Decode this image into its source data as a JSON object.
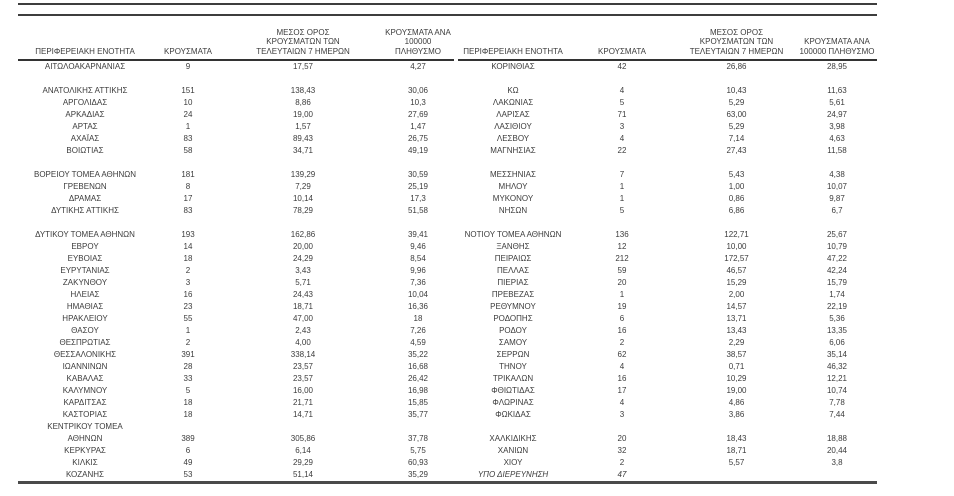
{
  "document": {
    "type": "regional-cases-report-table",
    "colors": {
      "text": "#3c3c3c",
      "rules": "#3d3d3d",
      "bottom_rule": "#4a4a4a"
    }
  },
  "table": {
    "headers": {
      "region": "ΠΕΡΙΦΕΡΕΙΑΚΗ ΕΝΟΤΗΤΑ",
      "cases": "ΚΡΟΥΣΜΑΤΑ",
      "avg7day": "ΜΕΣΟΣ ΟΡΟΣ\nΚΡΟΥΣΜΑΤΩΝ ΤΩΝ\nΤΕΛΕΥΤΑΙΩΝ 7 ΗΜΕΡΩΝ",
      "per100k": "ΚΡΟΥΣΜΑΤΑ ΑΝΑ\n100000 ΠΛΗΘΥΣΜΟ"
    },
    "left_rows": [
      {
        "cells": [
          "ΑΙΤΩΛΟΑΚΑΡΝΑΝΙΑΣ",
          "9",
          "17,57",
          "4,27"
        ]
      },
      {
        "cells": [
          "",
          "",
          "",
          ""
        ]
      },
      {
        "cells": [
          "ΑΝΑΤΟΛΙΚΗΣ ΑΤΤΙΚΗΣ",
          "151",
          "138,43",
          "30,06"
        ]
      },
      {
        "cells": [
          "ΑΡΓΟΛΙΔΑΣ",
          "10",
          "8,86",
          "10,3"
        ]
      },
      {
        "cells": [
          "ΑΡΚΑΔΙΑΣ",
          "24",
          "19,00",
          "27,69"
        ]
      },
      {
        "cells": [
          "ΑΡΤΑΣ",
          "1",
          "1,57",
          "1,47"
        ]
      },
      {
        "cells": [
          "ΑΧΑΪΑΣ",
          "83",
          "89,43",
          "26,75"
        ]
      },
      {
        "cells": [
          "ΒΟΙΩΤΙΑΣ",
          "58",
          "34,71",
          "49,19"
        ]
      },
      {
        "cells": [
          "",
          "",
          "",
          ""
        ]
      },
      {
        "cells": [
          "ΒΟΡΕΙΟΥ ΤΟΜΕΑ ΑΘΗΝΩΝ",
          "181",
          "139,29",
          "30,59"
        ]
      },
      {
        "cells": [
          "ΓΡΕΒΕΝΩΝ",
          "8",
          "7,29",
          "25,19"
        ]
      },
      {
        "cells": [
          "ΔΡΑΜΑΣ",
          "17",
          "10,14",
          "17,3"
        ]
      },
      {
        "cells": [
          "ΔΥΤΙΚΗΣ ΑΤΤΙΚΗΣ",
          "83",
          "78,29",
          "51,58"
        ]
      },
      {
        "cells": [
          "",
          "",
          "",
          ""
        ]
      },
      {
        "cells": [
          "ΔΥΤΙΚΟΥ ΤΟΜΕΑ ΑΘΗΝΩΝ",
          "193",
          "162,86",
          "39,41"
        ]
      },
      {
        "cells": [
          "ΕΒΡΟΥ",
          "14",
          "20,00",
          "9,46"
        ]
      },
      {
        "cells": [
          "ΕΥΒΟΙΑΣ",
          "18",
          "24,29",
          "8,54"
        ]
      },
      {
        "cells": [
          "ΕΥΡΥΤΑΝΙΑΣ",
          "2",
          "3,43",
          "9,96"
        ]
      },
      {
        "cells": [
          "ΖΑΚΥΝΘΟΥ",
          "3",
          "5,71",
          "7,36"
        ]
      },
      {
        "cells": [
          "ΗΛΕΙΑΣ",
          "16",
          "24,43",
          "10,04"
        ]
      },
      {
        "cells": [
          "ΗΜΑΘΙΑΣ",
          "23",
          "18,71",
          "16,36"
        ]
      },
      {
        "cells": [
          "ΗΡΑΚΛΕΙΟΥ",
          "55",
          "47,00",
          "18"
        ]
      },
      {
        "cells": [
          "ΘΑΣΟΥ",
          "1",
          "2,43",
          "7,26"
        ]
      },
      {
        "cells": [
          "ΘΕΣΠΡΩΤΙΑΣ",
          "2",
          "4,00",
          "4,59"
        ]
      },
      {
        "cells": [
          "ΘΕΣΣΑΛΟΝΙΚΗΣ",
          "391",
          "338,14",
          "35,22"
        ]
      },
      {
        "cells": [
          "ΙΩΑΝΝΙΝΩΝ",
          "28",
          "23,57",
          "16,68"
        ]
      },
      {
        "cells": [
          "ΚΑΒΑΛΑΣ",
          "33",
          "23,57",
          "26,42"
        ]
      },
      {
        "cells": [
          "ΚΑΛΥΜΝΟΥ",
          "5",
          "16,00",
          "16,98"
        ]
      },
      {
        "cells": [
          "ΚΑΡΔΙΤΣΑΣ",
          "18",
          "21,71",
          "15,85"
        ]
      },
      {
        "cells": [
          "ΚΑΣΤΟΡΙΑΣ",
          "18",
          "14,71",
          "35,77"
        ]
      },
      {
        "cells": [
          "ΚΕΝΤΡΙΚΟΥ ΤΟΜΕΑ",
          "",
          "",
          ""
        ]
      },
      {
        "cells": [
          "ΑΘΗΝΩΝ",
          "389",
          "305,86",
          "37,78"
        ]
      },
      {
        "cells": [
          "ΚΕΡΚΥΡΑΣ",
          "6",
          "6,14",
          "5,75"
        ]
      },
      {
        "cells": [
          "ΚΙΛΚΙΣ",
          "49",
          "29,29",
          "60,93"
        ]
      },
      {
        "cells": [
          "ΚΟΖΑΝΗΣ",
          "53",
          "51,14",
          "35,29"
        ]
      }
    ],
    "right_rows": [
      {
        "cells": [
          "ΚΟΡΙΝΘΙΑΣ",
          "42",
          "26,86",
          "28,95"
        ]
      },
      {
        "cells": [
          "",
          "",
          "",
          ""
        ]
      },
      {
        "cells": [
          "ΚΩ",
          "4",
          "10,43",
          "11,63"
        ]
      },
      {
        "cells": [
          "ΛΑΚΩΝΙΑΣ",
          "5",
          "5,29",
          "5,61"
        ]
      },
      {
        "cells": [
          "ΛΑΡΙΣΑΣ",
          "71",
          "63,00",
          "24,97"
        ]
      },
      {
        "cells": [
          "ΛΑΣΙΘΙΟΥ",
          "3",
          "5,29",
          "3,98"
        ]
      },
      {
        "cells": [
          "ΛΕΣΒΟΥ",
          "4",
          "7,14",
          "4,63"
        ]
      },
      {
        "cells": [
          "ΜΑΓΝΗΣΙΑΣ",
          "22",
          "27,43",
          "11,58"
        ]
      },
      {
        "cells": [
          "",
          "",
          "",
          ""
        ]
      },
      {
        "cells": [
          "ΜΕΣΣΗΝΙΑΣ",
          "7",
          "5,43",
          "4,38"
        ]
      },
      {
        "cells": [
          "ΜΗΛΟΥ",
          "1",
          "1,00",
          "10,07"
        ]
      },
      {
        "cells": [
          "ΜΥΚΟΝΟΥ",
          "1",
          "0,86",
          "9,87"
        ]
      },
      {
        "cells": [
          "ΝΗΣΩΝ",
          "5",
          "6,86",
          "6,7"
        ]
      },
      {
        "cells": [
          "",
          "",
          "",
          ""
        ]
      },
      {
        "cells": [
          "ΝΟΤΙΟΥ ΤΟΜΕΑ ΑΘΗΝΩΝ",
          "136",
          "122,71",
          "25,67"
        ]
      },
      {
        "cells": [
          "ΞΑΝΘΗΣ",
          "12",
          "10,00",
          "10,79"
        ]
      },
      {
        "cells": [
          "ΠΕΙΡΑΙΩΣ",
          "212",
          "172,57",
          "47,22"
        ]
      },
      {
        "cells": [
          "ΠΕΛΛΑΣ",
          "59",
          "46,57",
          "42,24"
        ]
      },
      {
        "cells": [
          "ΠΙΕΡΙΑΣ",
          "20",
          "15,29",
          "15,79"
        ]
      },
      {
        "cells": [
          "ΠΡΕΒΕΖΑΣ",
          "1",
          "2,00",
          "1,74"
        ]
      },
      {
        "cells": [
          "ΡΕΘΥΜΝΟΥ",
          "19",
          "14,57",
          "22,19"
        ]
      },
      {
        "cells": [
          "ΡΟΔΟΠΗΣ",
          "6",
          "13,71",
          "5,36"
        ]
      },
      {
        "cells": [
          "ΡΟΔΟΥ",
          "16",
          "13,43",
          "13,35"
        ]
      },
      {
        "cells": [
          "ΣΑΜΟΥ",
          "2",
          "2,29",
          "6,06"
        ]
      },
      {
        "cells": [
          "ΣΕΡΡΩΝ",
          "62",
          "38,57",
          "35,14"
        ]
      },
      {
        "cells": [
          "ΤΗΝΟΥ",
          "4",
          "0,71",
          "46,32"
        ]
      },
      {
        "cells": [
          "ΤΡΙΚΑΛΩΝ",
          "16",
          "10,29",
          "12,21"
        ]
      },
      {
        "cells": [
          "ΦΘΙΩΤΙΔΑΣ",
          "17",
          "19,00",
          "10,74"
        ]
      },
      {
        "cells": [
          "ΦΛΩΡΙΝΑΣ",
          "4",
          "4,86",
          "7,78"
        ]
      },
      {
        "cells": [
          "ΦΩΚΙΔΑΣ",
          "3",
          "3,86",
          "7,44"
        ]
      },
      {
        "cells": [
          "",
          "",
          "",
          ""
        ]
      },
      {
        "cells": [
          "ΧΑΛΚΙΔΙΚΗΣ",
          "20",
          "18,43",
          "18,88"
        ]
      },
      {
        "cells": [
          "ΧΑΝΙΩΝ",
          "32",
          "18,71",
          "20,44"
        ]
      },
      {
        "cells": [
          "ΧΙΟΥ",
          "2",
          "5,57",
          "3,8"
        ]
      },
      {
        "cells": [
          "ΥΠΟ ΔΙΕΡΕΥΝΗΣΗ",
          "47",
          "",
          ""
        ],
        "italic": true
      }
    ]
  }
}
